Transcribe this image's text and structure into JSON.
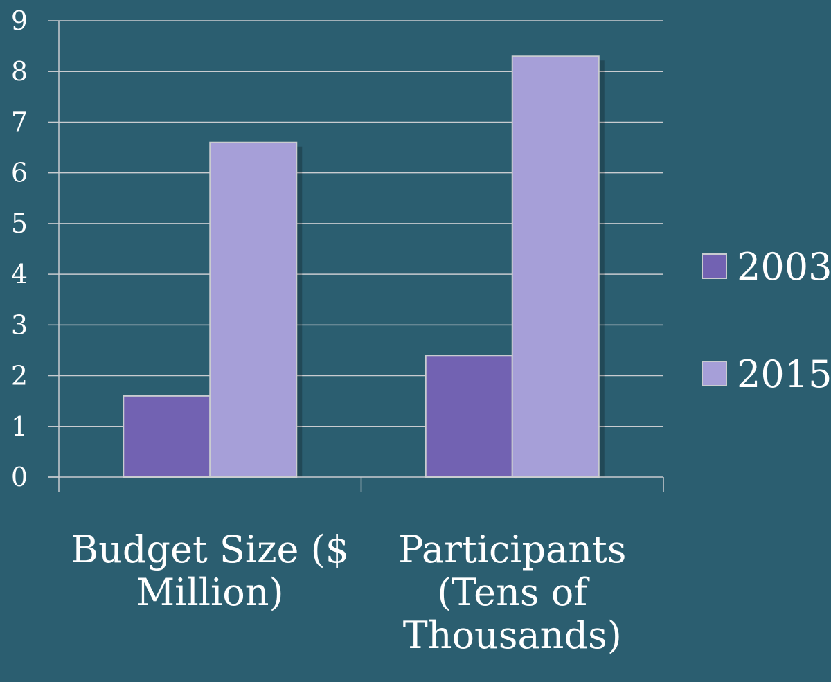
{
  "chart_data": {
    "type": "bar",
    "categories": [
      [
        "Budget Size ($",
        "Million)"
      ],
      [
        "Participants",
        "(Tens of",
        "Thousands)"
      ]
    ],
    "series": [
      {
        "name": "2003",
        "values": [
          1.6,
          2.4
        ],
        "color": "#7262b2"
      },
      {
        "name": "2015",
        "values": [
          6.6,
          8.3
        ],
        "color": "#a69fd8"
      }
    ],
    "ylim": [
      0,
      9
    ],
    "yticks": [
      "0",
      "1",
      "2",
      "3",
      "4",
      "5",
      "6",
      "7",
      "8",
      "9"
    ],
    "grid": true,
    "legend": "right",
    "colors": {
      "background": "#2b5e70",
      "axis": "#c9ccd0",
      "text": "#ffffff"
    }
  }
}
